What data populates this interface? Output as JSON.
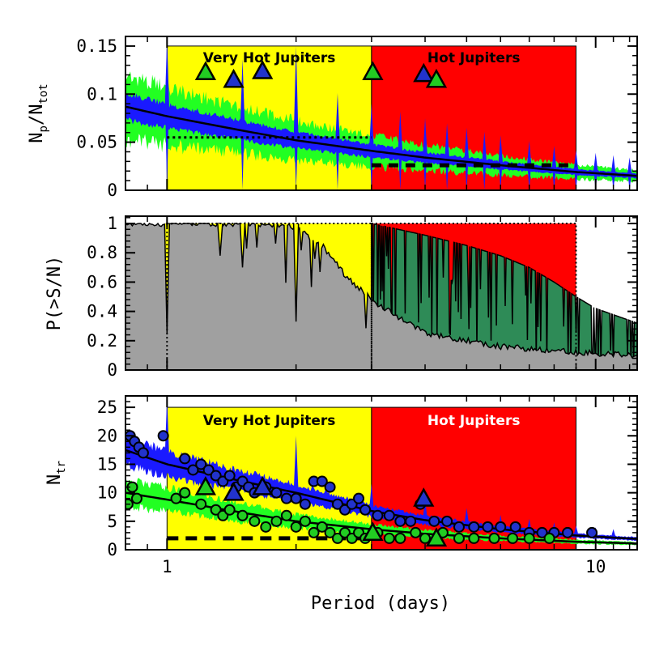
{
  "chart_data": [
    {
      "type": "line",
      "panel": "top",
      "ylabel": "N_p/N_tot",
      "ylabel_main": "N",
      "ylabel_sub1": "p",
      "ylabel_mid": "/N",
      "ylabel_sub2": "tot",
      "xscale": "log",
      "xlim": [
        0.8,
        12.5
      ],
      "ylim": [
        0,
        0.16
      ],
      "yticks": [
        {
          "value": 0,
          "label": "0"
        },
        {
          "value": 0.05,
          "label": "0.05"
        },
        {
          "value": 0.1,
          "label": "0.1"
        },
        {
          "value": 0.15,
          "label": "0.15"
        }
      ],
      "bands": [
        {
          "label": "Very Hot Jupiters",
          "x0": 1.0,
          "x1": 3.0,
          "color": "#ffff00",
          "text_color": "#000000"
        },
        {
          "label": "Hot Jupiters",
          "x0": 3.0,
          "x1": 9.0,
          "color": "#ff0000",
          "text_color": "#000000"
        }
      ],
      "model_curve": {
        "x": [
          0.8,
          1,
          1.5,
          2,
          3,
          4,
          6,
          9,
          12.5
        ],
        "y": [
          0.087,
          0.077,
          0.062,
          0.052,
          0.041,
          0.034,
          0.026,
          0.019,
          0.015
        ]
      },
      "step_levels": [
        {
          "x0": 1.0,
          "x1": 3.0,
          "y": 0.055,
          "style": "dotted"
        },
        {
          "x0": 3.0,
          "x1": 9.0,
          "y": 0.026,
          "style": "dashed"
        }
      ],
      "triangles": [
        {
          "x": 1.23,
          "y": 0.123,
          "color": "#22cc22"
        },
        {
          "x": 1.43,
          "y": 0.115,
          "color": "#2233cc"
        },
        {
          "x": 1.67,
          "y": 0.124,
          "color": "#2233cc"
        },
        {
          "x": 3.02,
          "y": 0.123,
          "color": "#22cc22"
        },
        {
          "x": 3.97,
          "y": 0.121,
          "color": "#2233cc"
        },
        {
          "x": 4.25,
          "y": 0.115,
          "color": "#22cc22"
        }
      ],
      "colors": {
        "blue_band": "#1a1aff",
        "green_band": "#22ff22",
        "curve": "#000000"
      }
    },
    {
      "type": "area",
      "panel": "middle",
      "ylabel": "P(>S/N)",
      "xscale": "log",
      "xlim": [
        0.8,
        12.5
      ],
      "ylim": [
        0,
        1.05
      ],
      "yticks": [
        {
          "value": 0,
          "label": "0"
        },
        {
          "value": 0.2,
          "label": "0.2"
        },
        {
          "value": 0.4,
          "label": "0.4"
        },
        {
          "value": 0.6,
          "label": "0.6"
        },
        {
          "value": 0.8,
          "label": "0.8"
        },
        {
          "value": 1,
          "label": "1"
        }
      ],
      "grey_curve": {
        "x": [
          0.8,
          1.5,
          1.8,
          2,
          2.3,
          2.6,
          3.0,
          3.5,
          4,
          6,
          9,
          12.5
        ],
        "y": [
          1.0,
          1.0,
          0.99,
          0.97,
          0.85,
          0.65,
          0.48,
          0.35,
          0.25,
          0.16,
          0.12,
          0.1
        ]
      },
      "green_curve": {
        "x": [
          3.0,
          4,
          5,
          6,
          7,
          8,
          9,
          10,
          12.5
        ],
        "y": [
          1.0,
          0.92,
          0.85,
          0.78,
          0.7,
          0.6,
          0.5,
          0.42,
          0.32
        ]
      },
      "colors": {
        "grey": "#a0a0a0",
        "green": "#2e8b57",
        "yellow": "#ffff00",
        "red": "#ff0000"
      }
    },
    {
      "type": "scatter",
      "panel": "bottom",
      "ylabel": "N_tr",
      "ylabel_main": "N",
      "ylabel_sub1": "tr",
      "xlabel": "Period (days)",
      "xscale": "log",
      "xlim": [
        0.8,
        12.5
      ],
      "ylim": [
        0,
        27
      ],
      "xticks": [
        {
          "value": 1,
          "label": "1"
        },
        {
          "value": 10,
          "label": "10"
        }
      ],
      "yticks": [
        {
          "value": 0,
          "label": "0"
        },
        {
          "value": 5,
          "label": "5"
        },
        {
          "value": 10,
          "label": "10"
        },
        {
          "value": 15,
          "label": "15"
        },
        {
          "value": 20,
          "label": "20"
        },
        {
          "value": 25,
          "label": "25"
        }
      ],
      "bands": [
        {
          "label": "Very Hot Jupiters",
          "x0": 1.0,
          "x1": 3.0,
          "color": "#ffff00",
          "text_color": "#000000"
        },
        {
          "label": "Hot Jupiters",
          "x0": 3.0,
          "x1": 9.0,
          "color": "#ff0000",
          "text_color": "#ffffff"
        }
      ],
      "blue_curve": {
        "x": [
          0.8,
          1,
          1.5,
          2,
          3,
          4,
          6,
          9,
          12.5
        ],
        "y": [
          17.5,
          15.0,
          12.0,
          10.0,
          6.8,
          5.2,
          3.6,
          2.5,
          1.9
        ]
      },
      "green_curve": {
        "x": [
          0.8,
          1,
          1.5,
          2,
          3,
          4,
          6,
          9,
          12.5
        ],
        "y": [
          10.0,
          8.8,
          6.5,
          5.0,
          3.6,
          2.8,
          2.0,
          1.4,
          1.1
        ]
      },
      "dashed_level": {
        "x0": 1.0,
        "x1": 3.0,
        "y": 2.0
      },
      "blue_points": [
        {
          "x": 0.82,
          "y": 20
        },
        {
          "x": 0.84,
          "y": 19
        },
        {
          "x": 0.86,
          "y": 18
        },
        {
          "x": 0.88,
          "y": 17
        },
        {
          "x": 0.98,
          "y": 20
        },
        {
          "x": 1.1,
          "y": 16
        },
        {
          "x": 1.15,
          "y": 14
        },
        {
          "x": 1.2,
          "y": 15
        },
        {
          "x": 1.25,
          "y": 14
        },
        {
          "x": 1.3,
          "y": 13
        },
        {
          "x": 1.35,
          "y": 12
        },
        {
          "x": 1.4,
          "y": 13
        },
        {
          "x": 1.45,
          "y": 11
        },
        {
          "x": 1.5,
          "y": 12
        },
        {
          "x": 1.55,
          "y": 11
        },
        {
          "x": 1.6,
          "y": 10
        },
        {
          "x": 1.7,
          "y": 11
        },
        {
          "x": 1.8,
          "y": 10
        },
        {
          "x": 1.9,
          "y": 9
        },
        {
          "x": 2.0,
          "y": 9
        },
        {
          "x": 2.1,
          "y": 8
        },
        {
          "x": 2.2,
          "y": 12
        },
        {
          "x": 2.3,
          "y": 12
        },
        {
          "x": 2.4,
          "y": 11
        },
        {
          "x": 2.5,
          "y": 8
        },
        {
          "x": 2.6,
          "y": 7
        },
        {
          "x": 2.7,
          "y": 8
        },
        {
          "x": 2.8,
          "y": 9
        },
        {
          "x": 2.9,
          "y": 7
        },
        {
          "x": 3.1,
          "y": 6
        },
        {
          "x": 3.3,
          "y": 6
        },
        {
          "x": 3.5,
          "y": 5
        },
        {
          "x": 3.7,
          "y": 5
        },
        {
          "x": 3.9,
          "y": 8
        },
        {
          "x": 4.2,
          "y": 5
        },
        {
          "x": 4.5,
          "y": 5
        },
        {
          "x": 4.8,
          "y": 4
        },
        {
          "x": 5.2,
          "y": 4
        },
        {
          "x": 5.6,
          "y": 4
        },
        {
          "x": 6.0,
          "y": 4
        },
        {
          "x": 6.5,
          "y": 4
        },
        {
          "x": 7.0,
          "y": 3
        },
        {
          "x": 7.5,
          "y": 3
        },
        {
          "x": 8.0,
          "y": 3
        },
        {
          "x": 8.6,
          "y": 3
        },
        {
          "x": 9.8,
          "y": 3
        }
      ],
      "green_points": [
        {
          "x": 0.81,
          "y": 8
        },
        {
          "x": 0.83,
          "y": 11
        },
        {
          "x": 0.85,
          "y": 9
        },
        {
          "x": 1.05,
          "y": 9
        },
        {
          "x": 1.1,
          "y": 10
        },
        {
          "x": 1.2,
          "y": 8
        },
        {
          "x": 1.3,
          "y": 7
        },
        {
          "x": 1.35,
          "y": 6
        },
        {
          "x": 1.4,
          "y": 7
        },
        {
          "x": 1.5,
          "y": 6
        },
        {
          "x": 1.6,
          "y": 5
        },
        {
          "x": 1.7,
          "y": 4
        },
        {
          "x": 1.8,
          "y": 5
        },
        {
          "x": 1.9,
          "y": 6
        },
        {
          "x": 2.0,
          "y": 4
        },
        {
          "x": 2.1,
          "y": 5
        },
        {
          "x": 2.2,
          "y": 3
        },
        {
          "x": 2.3,
          "y": 4
        },
        {
          "x": 2.4,
          "y": 3
        },
        {
          "x": 2.5,
          "y": 2
        },
        {
          "x": 2.6,
          "y": 3
        },
        {
          "x": 2.7,
          "y": 2
        },
        {
          "x": 2.8,
          "y": 3
        },
        {
          "x": 2.9,
          "y": 2
        },
        {
          "x": 3.1,
          "y": 3
        },
        {
          "x": 3.3,
          "y": 2
        },
        {
          "x": 3.5,
          "y": 2
        },
        {
          "x": 3.8,
          "y": 3
        },
        {
          "x": 4.0,
          "y": 2
        },
        {
          "x": 4.4,
          "y": 3
        },
        {
          "x": 4.8,
          "y": 2
        },
        {
          "x": 5.2,
          "y": 2
        },
        {
          "x": 5.8,
          "y": 2
        },
        {
          "x": 6.4,
          "y": 2
        },
        {
          "x": 7.0,
          "y": 2
        },
        {
          "x": 7.8,
          "y": 2
        }
      ],
      "triangles": [
        {
          "x": 1.23,
          "y": 11,
          "color": "#22cc22"
        },
        {
          "x": 1.43,
          "y": 10,
          "color": "#2233cc"
        },
        {
          "x": 1.67,
          "y": 11,
          "color": "#2233cc"
        },
        {
          "x": 3.02,
          "y": 3,
          "color": "#22cc22"
        },
        {
          "x": 3.97,
          "y": 9,
          "color": "#2233cc"
        },
        {
          "x": 4.25,
          "y": 2,
          "color": "#22cc22"
        }
      ],
      "colors": {
        "blue_band": "#1a1aff",
        "green_band": "#22ff22",
        "blue_point": "#2233cc",
        "green_point": "#22cc22"
      }
    }
  ]
}
